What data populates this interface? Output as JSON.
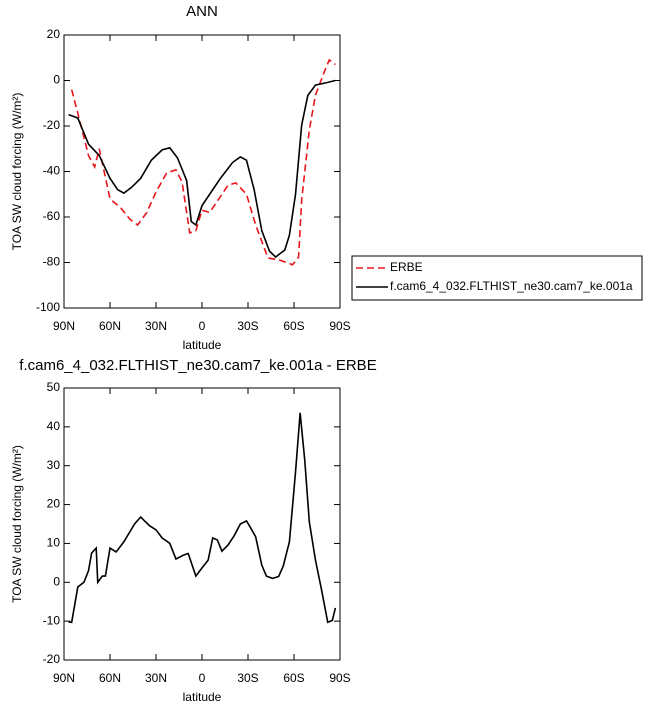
{
  "chart_data": [
    {
      "type": "line",
      "title": "ANN",
      "xlabel": "latitude",
      "ylabel": "TOA SW cloud forcing (W/m²)",
      "xlim": [
        90,
        -90
      ],
      "xticks": [
        {
          "value": 90,
          "label": "90N"
        },
        {
          "value": 60,
          "label": "60N"
        },
        {
          "value": 30,
          "label": "30N"
        },
        0,
        {
          "value": -30,
          "label": "30S"
        },
        {
          "value": -60,
          "label": "60S"
        },
        {
          "value": -90,
          "label": "90S"
        }
      ],
      "ylim": [
        -100,
        20
      ],
      "yticks": [
        -100,
        -80,
        -60,
        -40,
        -20,
        0,
        20
      ],
      "legend": true,
      "series": [
        {
          "name": "ERBE",
          "color": "#e8161b",
          "linestyle": "dashed",
          "x": [
            85,
            80,
            74,
            70,
            67,
            60,
            53,
            47,
            42,
            36,
            30,
            23,
            17,
            13,
            8,
            4,
            0,
            -5,
            -12,
            -17,
            -22,
            -29,
            -35,
            -43,
            -51,
            -59,
            -63,
            -65,
            -70,
            -74,
            -81,
            -83,
            -87
          ],
          "values": [
            -4,
            -17,
            -33,
            -38,
            -30,
            -52,
            -56,
            -61,
            -63.5,
            -58,
            -49,
            -40.6,
            -39.3,
            -44.6,
            -67,
            -66,
            -57,
            -58,
            -51,
            -46,
            -45,
            -50,
            -63.5,
            -78,
            -79,
            -81,
            -77.6,
            -52.5,
            -21.7,
            -6.4,
            6,
            9,
            7
          ]
        },
        {
          "name": "f.cam6_4_032.FLTHIST_ne30.cam7_ke.001a",
          "color": "#000000",
          "linestyle": "solid",
          "x": [
            87,
            81,
            74,
            67,
            60,
            55,
            51,
            46,
            40,
            33,
            26,
            21,
            16,
            10,
            7,
            4,
            0,
            -5,
            -12,
            -20,
            -25,
            -29,
            -34,
            -39,
            -44,
            -48,
            -54,
            -57,
            -61,
            -65,
            -69,
            -74,
            -81,
            -87
          ],
          "values": [
            -15,
            -16.5,
            -28,
            -33,
            -43,
            -48,
            -49.5,
            -47,
            -43,
            -35,
            -30.5,
            -29.6,
            -34,
            -44,
            -62,
            -63.5,
            -55,
            -50,
            -43,
            -36,
            -33.6,
            -35,
            -48,
            -66,
            -75,
            -77.6,
            -74.5,
            -68,
            -50,
            -19.6,
            -6.6,
            -2,
            -1,
            0
          ]
        }
      ]
    },
    {
      "type": "line",
      "title": "f.cam6_4_032.FLTHIST_ne30.cam7_ke.001a - ERBE",
      "xlabel": "latitude",
      "ylabel": "TOA SW cloud forcing (W/m²)",
      "xlim": [
        90,
        -90
      ],
      "xticks": [
        {
          "value": 90,
          "label": "90N"
        },
        {
          "value": 60,
          "label": "60N"
        },
        {
          "value": 30,
          "label": "30N"
        },
        0,
        {
          "value": -30,
          "label": "30S"
        },
        {
          "value": -60,
          "label": "60S"
        },
        {
          "value": -90,
          "label": "90S"
        }
      ],
      "ylim": [
        -20,
        50
      ],
      "yticks": [
        -20,
        -10,
        0,
        10,
        20,
        30,
        40,
        50
      ],
      "legend": false,
      "series": [
        {
          "color": "#000000",
          "linestyle": "solid",
          "x": [
            87,
            85,
            81,
            77,
            74,
            72,
            69,
            68,
            65,
            63,
            60,
            56,
            51,
            47,
            44,
            40,
            38,
            34,
            30,
            26,
            23,
            21,
            17,
            12,
            9,
            4,
            0,
            -4,
            -7,
            -10,
            -13,
            -17,
            -21,
            -25,
            -29,
            -31,
            -35,
            -39,
            -42,
            -46,
            -50,
            -53,
            -57,
            -61,
            -64,
            -67,
            -70,
            -74,
            -78,
            -82,
            -85,
            -87
          ],
          "values": [
            -10.2,
            -10.3,
            -1.2,
            0,
            3,
            7.5,
            8.8,
            0,
            1.6,
            1.6,
            8.8,
            7.8,
            10.4,
            13,
            15,
            16.8,
            16,
            14.5,
            13.5,
            11.4,
            10.6,
            10,
            6,
            7,
            7.4,
            1.6,
            3.7,
            5.7,
            11.4,
            10.9,
            8,
            9.6,
            12,
            15,
            15.8,
            14.5,
            11.7,
            4.4,
            1.6,
            1,
            1.5,
            4.2,
            10.4,
            28.4,
            43.6,
            31.5,
            15.5,
            5.7,
            -2,
            -10.3,
            -9.8,
            -6.6
          ]
        }
      ]
    }
  ]
}
